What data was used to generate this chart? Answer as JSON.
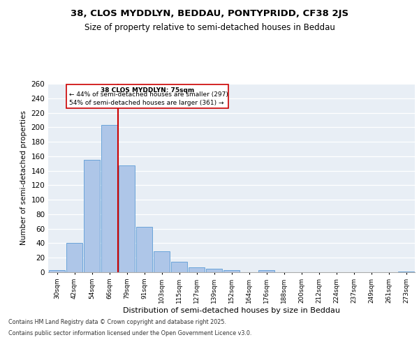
{
  "title": "38, CLOS MYDDLYN, BEDDAU, PONTYPRIDD, CF38 2JS",
  "subtitle": "Size of property relative to semi-detached houses in Beddau",
  "xlabel": "Distribution of semi-detached houses by size in Beddau",
  "ylabel": "Number of semi-detached properties",
  "categories": [
    "30sqm",
    "42sqm",
    "54sqm",
    "66sqm",
    "79sqm",
    "91sqm",
    "103sqm",
    "115sqm",
    "127sqm",
    "139sqm",
    "152sqm",
    "164sqm",
    "176sqm",
    "188sqm",
    "200sqm",
    "212sqm",
    "224sqm",
    "237sqm",
    "249sqm",
    "261sqm",
    "273sqm"
  ],
  "values": [
    3,
    40,
    155,
    203,
    147,
    63,
    29,
    14,
    7,
    5,
    3,
    0,
    3,
    0,
    0,
    0,
    0,
    0,
    0,
    0,
    1
  ],
  "bar_color": "#aec6e8",
  "bar_edge_color": "#5b9bd5",
  "property_line_x": 3.5,
  "annotation_title": "38 CLOS MYDDLYN: 75sqm",
  "annotation_smaller": "← 44% of semi-detached houses are smaller (297)",
  "annotation_larger": "54% of semi-detached houses are larger (361) →",
  "vline_color": "#cc0000",
  "plot_background": "#e8eef5",
  "footer1": "Contains HM Land Registry data © Crown copyright and database right 2025.",
  "footer2": "Contains public sector information licensed under the Open Government Licence v3.0.",
  "ylim": [
    0,
    260
  ],
  "yticks": [
    0,
    20,
    40,
    60,
    80,
    100,
    120,
    140,
    160,
    180,
    200,
    220,
    240,
    260
  ]
}
